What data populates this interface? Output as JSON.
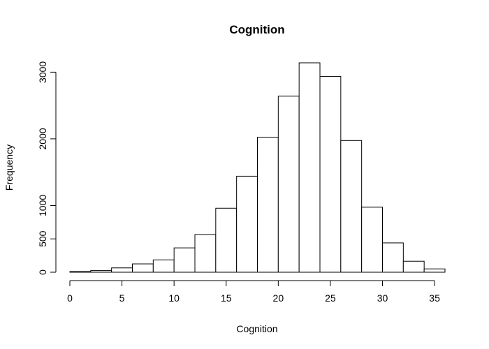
{
  "chart_data": {
    "type": "bar",
    "title": "Cognition",
    "xlabel": "Cognition",
    "ylabel": "Frequency",
    "bin_edges": [
      0,
      2,
      4,
      6,
      8,
      10,
      12,
      14,
      16,
      18,
      20,
      22,
      24,
      26,
      28,
      30,
      32,
      34,
      36
    ],
    "values": [
      10,
      25,
      65,
      125,
      185,
      365,
      565,
      960,
      1440,
      2025,
      2640,
      3140,
      2935,
      1975,
      975,
      440,
      165,
      50
    ],
    "xlim": [
      0,
      36
    ],
    "ylim": [
      0,
      3140
    ],
    "x_ticks": [
      0,
      5,
      10,
      15,
      20,
      25,
      30,
      35
    ],
    "y_ticks": [
      0,
      500,
      1000,
      2000,
      3000
    ],
    "grid": false
  }
}
